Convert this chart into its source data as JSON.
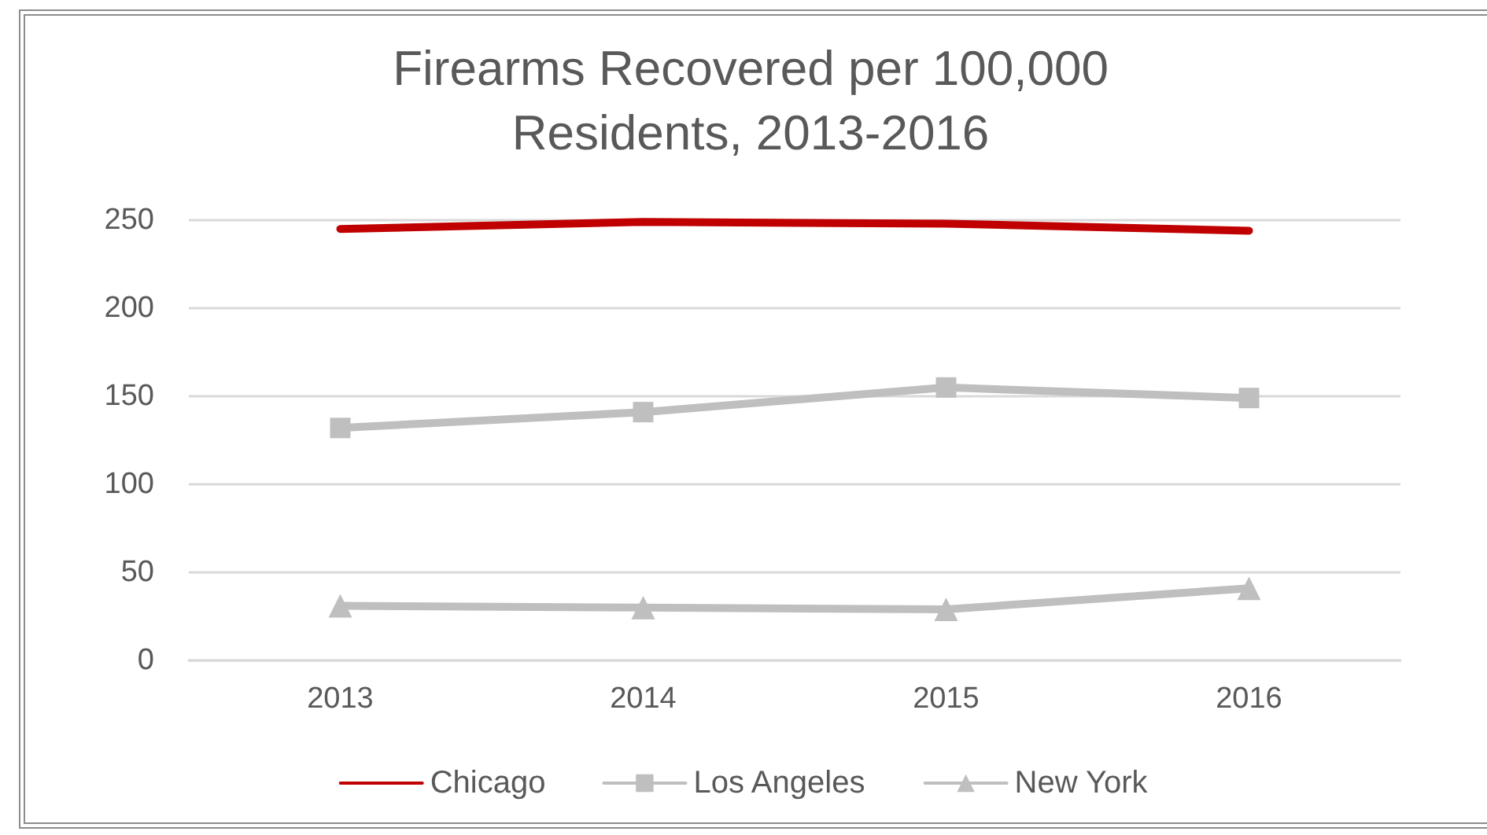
{
  "chart_data": {
    "type": "line",
    "title": "Firearms Recovered per 100,000\nResidents, 2013-2016",
    "categories": [
      "2013",
      "2014",
      "2015",
      "2016"
    ],
    "series": [
      {
        "name": "Chicago",
        "color": "#c00000",
        "marker": "none",
        "values": [
          245,
          249,
          248,
          244
        ]
      },
      {
        "name": "Los Angeles",
        "color": "#bfbfbf",
        "marker": "square",
        "values": [
          132,
          141,
          155,
          149
        ]
      },
      {
        "name": "New York",
        "color": "#bfbfbf",
        "marker": "triangle",
        "values": [
          31,
          30,
          29,
          41
        ]
      }
    ],
    "ylim": [
      0,
      250
    ],
    "yticks": [
      0,
      50,
      100,
      150,
      200,
      250
    ],
    "grid": "y",
    "legend": "bottom",
    "line_style": "solid"
  }
}
